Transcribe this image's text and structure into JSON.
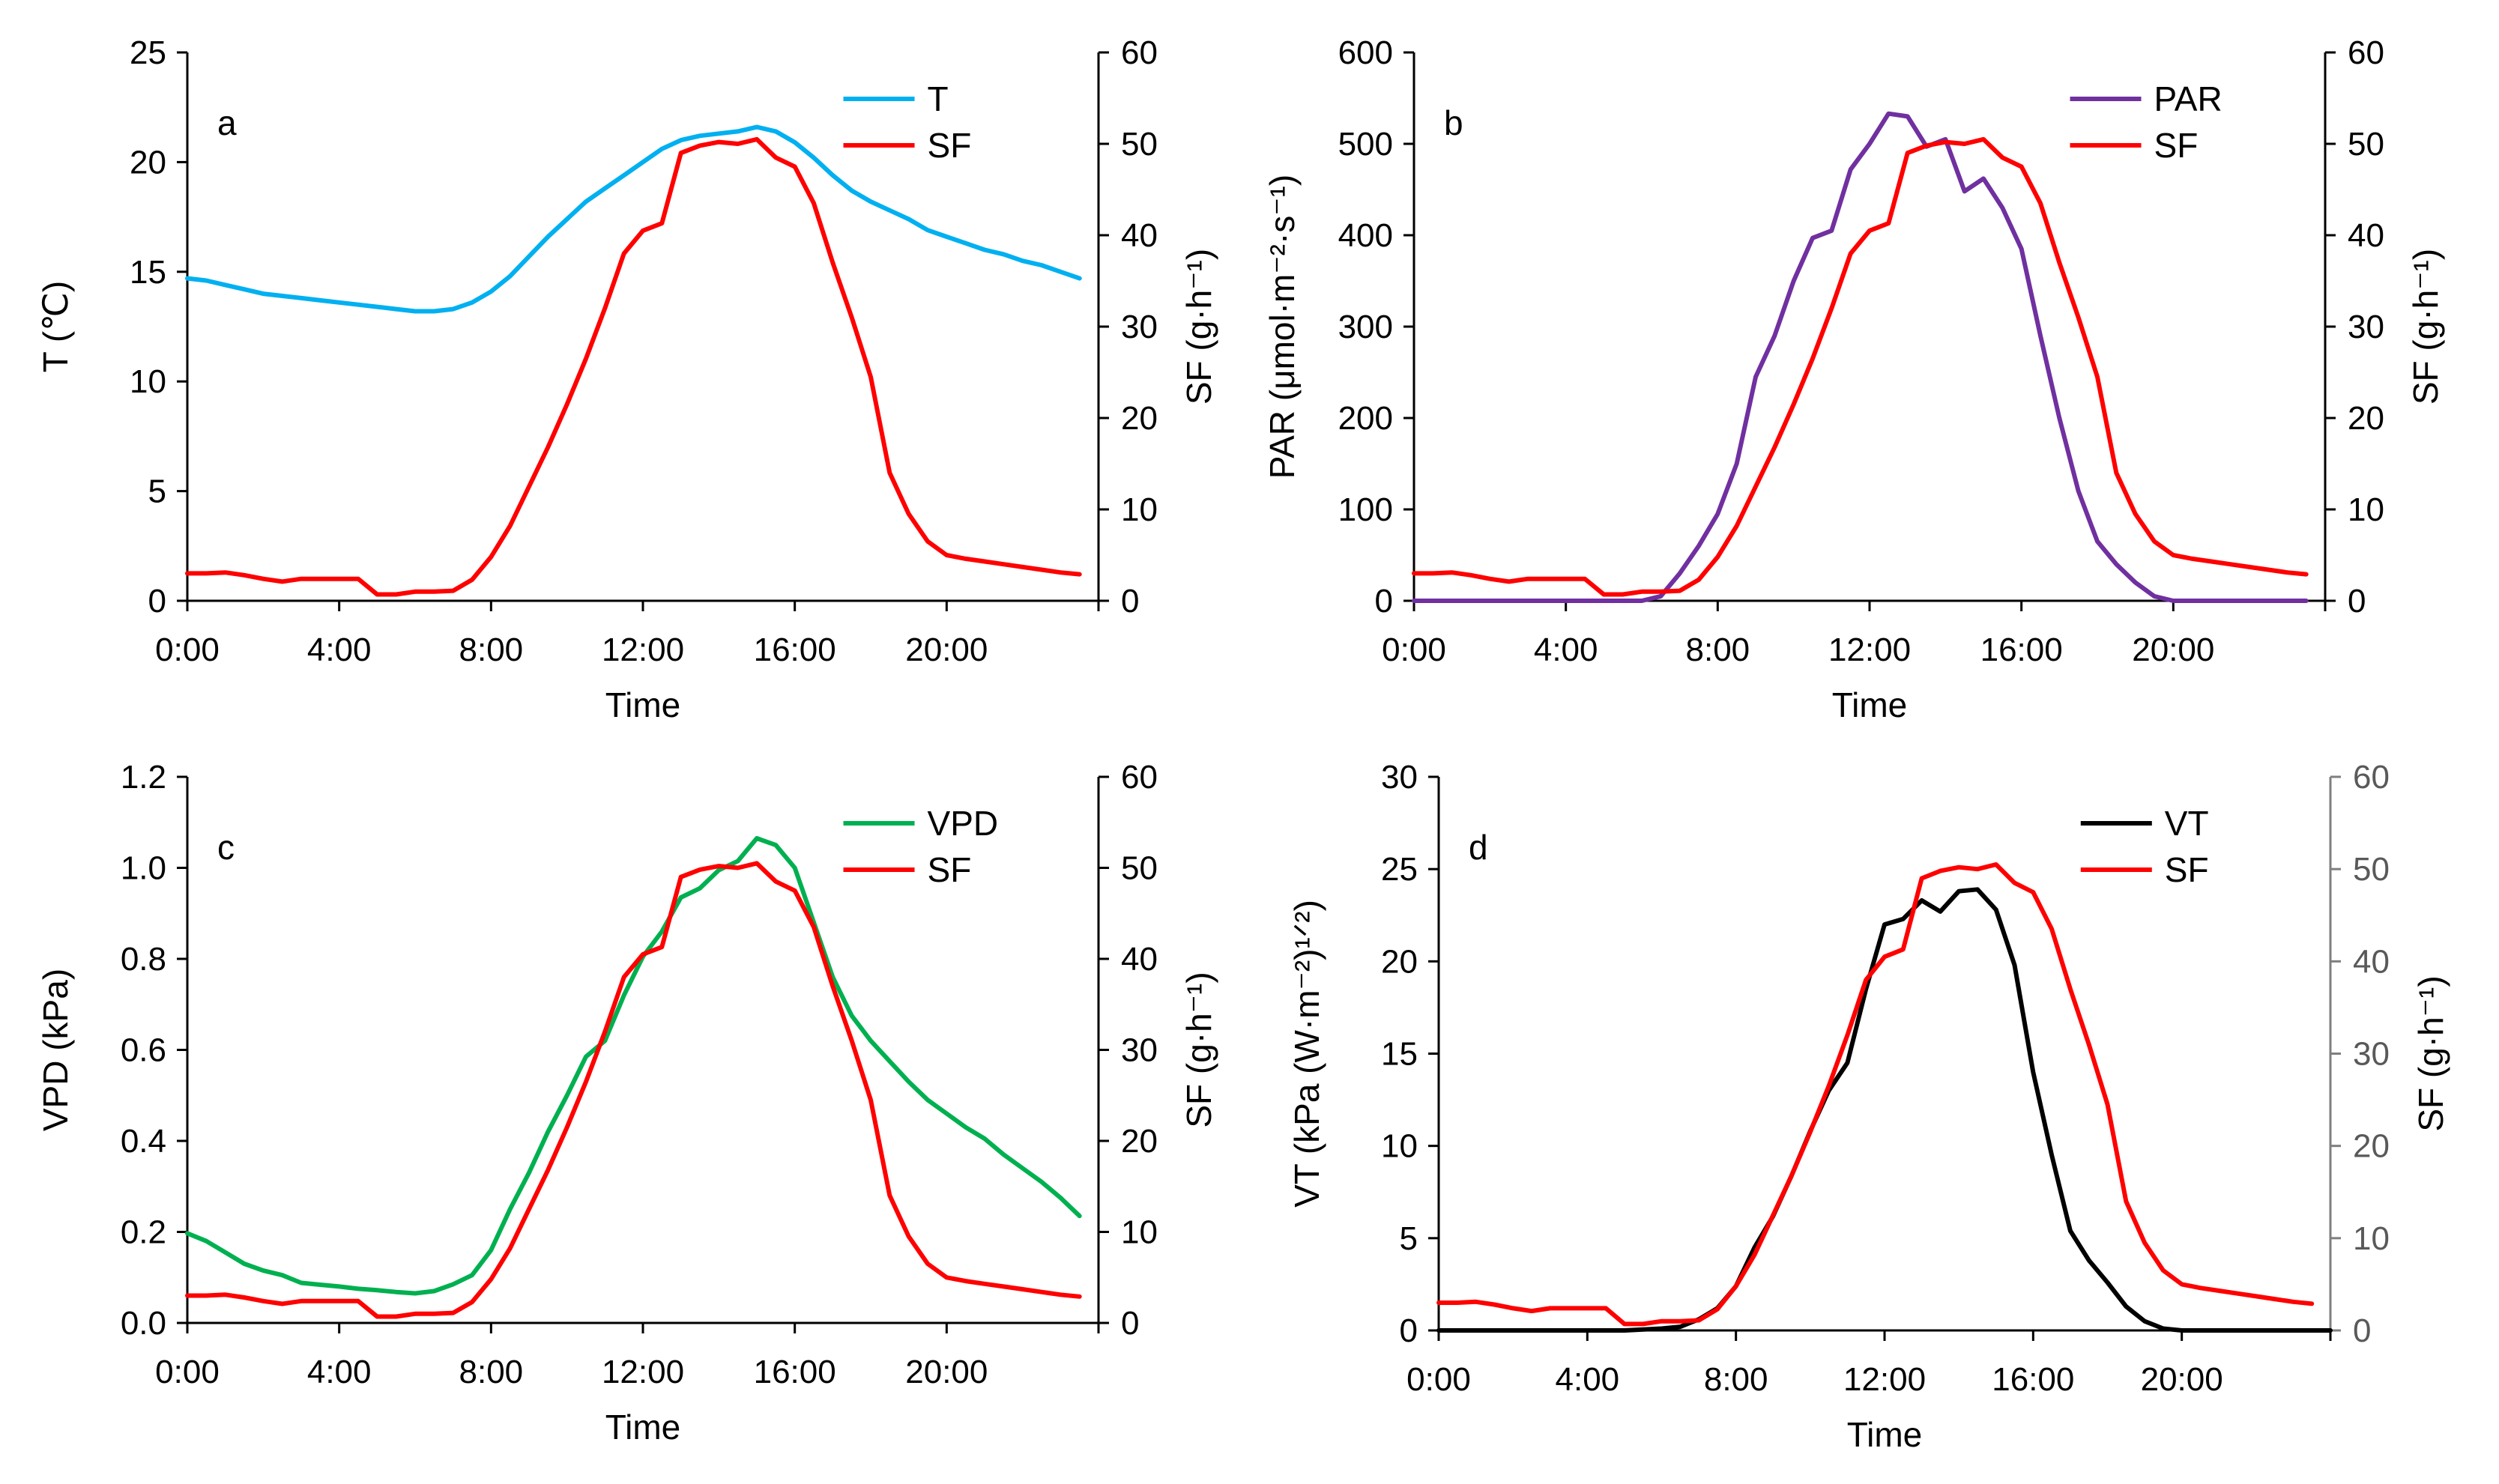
{
  "chart_data": [
    {
      "type": "line",
      "panel_label": "a",
      "x_unit": "hour",
      "xlim": [
        0,
        24
      ],
      "x_ticks": [
        0,
        4,
        8,
        12,
        16,
        20
      ],
      "x_tick_labels": [
        "0:00",
        "4:00",
        "8:00",
        "12:00",
        "16:00",
        "20:00"
      ],
      "xlabel": "Time",
      "ylabel_left": "T (℃)",
      "ylim_left": [
        0,
        25
      ],
      "y_ticks_left": [
        0,
        5,
        10,
        15,
        20,
        25
      ],
      "y_tick_labels_left": [
        "0",
        "5",
        "10",
        "15",
        "20",
        "25"
      ],
      "ylabel_right": "SF (g·h⁻¹)",
      "ylim_right": [
        0,
        60
      ],
      "y_ticks_right": [
        0,
        10,
        20,
        30,
        40,
        50,
        60
      ],
      "y_tick_labels_right": [
        "0",
        "10",
        "20",
        "30",
        "40",
        "50",
        "60"
      ],
      "right_tick_color": "#000000",
      "legend_position": "top-right",
      "series": [
        {
          "name": "T",
          "axis": "left",
          "color": "#00b0f0",
          "x": [
            0,
            0.5,
            1,
            1.5,
            2,
            2.5,
            3,
            3.5,
            4,
            4.5,
            5,
            5.5,
            6,
            6.5,
            7,
            7.5,
            8,
            8.5,
            9,
            9.5,
            10,
            10.5,
            11,
            11.5,
            12,
            12.5,
            13,
            13.5,
            14,
            14.5,
            15,
            15.5,
            16,
            16.5,
            17,
            17.5,
            18,
            18.5,
            19,
            19.5,
            20,
            20.5,
            21,
            21.5,
            22,
            22.5,
            23,
            23.5
          ],
          "values": [
            14.7,
            14.6,
            14.4,
            14.2,
            14.0,
            13.9,
            13.8,
            13.7,
            13.6,
            13.5,
            13.4,
            13.3,
            13.2,
            13.2,
            13.3,
            13.6,
            14.1,
            14.8,
            15.7,
            16.6,
            17.4,
            18.2,
            18.8,
            19.4,
            20.0,
            20.6,
            21.0,
            21.2,
            21.3,
            21.4,
            21.6,
            21.4,
            20.9,
            20.2,
            19.4,
            18.7,
            18.2,
            17.8,
            17.4,
            16.9,
            16.6,
            16.3,
            16.0,
            15.8,
            15.5,
            15.3,
            15.0,
            14.7
          ]
        },
        {
          "name": "SF",
          "axis": "right",
          "color": "#ff0000",
          "x": [
            0,
            0.5,
            1,
            1.5,
            2,
            2.5,
            3,
            3.5,
            4,
            4.5,
            5,
            5.5,
            6,
            6.5,
            7,
            7.5,
            8,
            8.5,
            9,
            9.5,
            10,
            10.5,
            11,
            11.5,
            12,
            12.5,
            13,
            13.5,
            14,
            14.5,
            15,
            15.5,
            16,
            16.5,
            17,
            17.5,
            18,
            18.5,
            19,
            19.5,
            20,
            20.5,
            21,
            21.5,
            22,
            22.5,
            23,
            23.5
          ],
          "values": [
            3.0,
            3.0,
            3.1,
            2.8,
            2.4,
            2.1,
            2.4,
            2.4,
            2.4,
            2.4,
            0.7,
            0.7,
            1.0,
            1.0,
            1.1,
            2.3,
            4.8,
            8.2,
            12.5,
            16.8,
            21.5,
            26.5,
            32.0,
            38.0,
            40.5,
            41.3,
            49.0,
            49.8,
            50.2,
            50.0,
            50.5,
            48.5,
            47.5,
            43.5,
            37.0,
            31.0,
            24.5,
            14.0,
            9.5,
            6.5,
            5.0,
            4.6,
            4.3,
            4.0,
            3.7,
            3.4,
            3.1,
            2.9
          ]
        }
      ]
    },
    {
      "type": "line",
      "panel_label": "b",
      "x_unit": "hour",
      "xlim": [
        0,
        24
      ],
      "x_ticks": [
        0,
        4,
        8,
        12,
        16,
        20
      ],
      "x_tick_labels": [
        "0:00",
        "4:00",
        "8:00",
        "12:00",
        "16:00",
        "20:00"
      ],
      "xlabel": "Time",
      "ylabel_left": "PAR (μmol·m⁻²·s⁻¹)",
      "ylim_left": [
        0,
        600
      ],
      "y_ticks_left": [
        0,
        100,
        200,
        300,
        400,
        500,
        600
      ],
      "y_tick_labels_left": [
        "0",
        "100",
        "200",
        "300",
        "400",
        "500",
        "600"
      ],
      "ylabel_right": "SF (g·h⁻¹)",
      "ylim_right": [
        0,
        60
      ],
      "y_ticks_right": [
        0,
        10,
        20,
        30,
        40,
        50,
        60
      ],
      "y_tick_labels_right": [
        "0",
        "10",
        "20",
        "30",
        "40",
        "50",
        "60"
      ],
      "right_tick_color": "#000000",
      "legend_position": "top-right",
      "series": [
        {
          "name": "PAR",
          "axis": "left",
          "color": "#7030a0",
          "x": [
            0,
            1,
            2,
            3,
            4,
            5,
            6,
            6.5,
            7,
            7.5,
            8,
            8.5,
            9,
            9.5,
            10,
            10.5,
            11,
            11.5,
            12,
            12.5,
            13,
            13.5,
            14,
            14.5,
            15,
            15.5,
            16,
            16.5,
            17,
            17.5,
            18,
            18.5,
            19,
            19.5,
            20,
            21,
            22,
            23,
            23.5
          ],
          "values": [
            0,
            0,
            0,
            0,
            0,
            0,
            0,
            5,
            30,
            60,
            95,
            150,
            245,
            290,
            350,
            397,
            405,
            472,
            500,
            533,
            530,
            497,
            505,
            448,
            462,
            430,
            385,
            290,
            200,
            120,
            65,
            40,
            20,
            5,
            0,
            0,
            0,
            0,
            0
          ]
        },
        {
          "name": "SF",
          "axis": "right",
          "color": "#ff0000",
          "x": [
            0,
            0.5,
            1,
            1.5,
            2,
            2.5,
            3,
            3.5,
            4,
            4.5,
            5,
            5.5,
            6,
            6.5,
            7,
            7.5,
            8,
            8.5,
            9,
            9.5,
            10,
            10.5,
            11,
            11.5,
            12,
            12.5,
            13,
            13.5,
            14,
            14.5,
            15,
            15.5,
            16,
            16.5,
            17,
            17.5,
            18,
            18.5,
            19,
            19.5,
            20,
            20.5,
            21,
            21.5,
            22,
            22.5,
            23,
            23.5
          ],
          "values": [
            3.0,
            3.0,
            3.1,
            2.8,
            2.4,
            2.1,
            2.4,
            2.4,
            2.4,
            2.4,
            0.7,
            0.7,
            1.0,
            1.0,
            1.1,
            2.3,
            4.8,
            8.2,
            12.5,
            16.8,
            21.5,
            26.5,
            32.0,
            38.0,
            40.5,
            41.3,
            49.0,
            49.8,
            50.2,
            50.0,
            50.5,
            48.5,
            47.5,
            43.5,
            37.0,
            31.0,
            24.5,
            14.0,
            9.5,
            6.5,
            5.0,
            4.6,
            4.3,
            4.0,
            3.7,
            3.4,
            3.1,
            2.9
          ]
        }
      ]
    },
    {
      "type": "line",
      "panel_label": "c",
      "x_unit": "hour",
      "xlim": [
        0,
        24
      ],
      "x_ticks": [
        0,
        4,
        8,
        12,
        16,
        20
      ],
      "x_tick_labels": [
        "0:00",
        "4:00",
        "8:00",
        "12:00",
        "16:00",
        "20:00"
      ],
      "xlabel": "Time",
      "ylabel_left": "VPD (kPa)",
      "ylim_left": [
        0,
        1.2
      ],
      "y_ticks_left": [
        0,
        0.2,
        0.4,
        0.6,
        0.8,
        1.0,
        1.2
      ],
      "y_tick_labels_left": [
        "0.0",
        "0.2",
        "0.4",
        "0.6",
        "0.8",
        "1.0",
        "1.2"
      ],
      "ylabel_right": "SF (g·h⁻¹)",
      "ylim_right": [
        0,
        60
      ],
      "y_ticks_right": [
        0,
        10,
        20,
        30,
        40,
        50,
        60
      ],
      "y_tick_labels_right": [
        "0",
        "10",
        "20",
        "30",
        "40",
        "50",
        "60"
      ],
      "right_tick_color": "#000000",
      "legend_position": "top-right",
      "series": [
        {
          "name": "VPD",
          "axis": "left",
          "color": "#00b050",
          "x": [
            0,
            0.5,
            1,
            1.5,
            2,
            2.5,
            3,
            3.5,
            4,
            4.5,
            5,
            5.5,
            6,
            6.5,
            7,
            7.5,
            8,
            8.5,
            9,
            9.5,
            10,
            10.5,
            11,
            11.5,
            12,
            12.5,
            13,
            13.5,
            14,
            14.5,
            15,
            15.5,
            16,
            16.5,
            17,
            17.5,
            18,
            18.5,
            19,
            19.5,
            20,
            20.5,
            21,
            21.5,
            22,
            22.5,
            23,
            23.5
          ],
          "values": [
            0.197,
            0.18,
            0.155,
            0.13,
            0.115,
            0.105,
            0.088,
            0.084,
            0.08,
            0.075,
            0.072,
            0.068,
            0.065,
            0.07,
            0.085,
            0.105,
            0.16,
            0.25,
            0.33,
            0.42,
            0.5,
            0.585,
            0.62,
            0.72,
            0.805,
            0.86,
            0.935,
            0.955,
            0.995,
            1.015,
            1.065,
            1.05,
            1.0,
            0.88,
            0.76,
            0.675,
            0.62,
            0.575,
            0.53,
            0.49,
            0.46,
            0.43,
            0.405,
            0.37,
            0.34,
            0.31,
            0.275,
            0.235
          ]
        },
        {
          "name": "SF",
          "axis": "right",
          "color": "#ff0000",
          "x": [
            0,
            0.5,
            1,
            1.5,
            2,
            2.5,
            3,
            3.5,
            4,
            4.5,
            5,
            5.5,
            6,
            6.5,
            7,
            7.5,
            8,
            8.5,
            9,
            9.5,
            10,
            10.5,
            11,
            11.5,
            12,
            12.5,
            13,
            13.5,
            14,
            14.5,
            15,
            15.5,
            16,
            16.5,
            17,
            17.5,
            18,
            18.5,
            19,
            19.5,
            20,
            20.5,
            21,
            21.5,
            22,
            22.5,
            23,
            23.5
          ],
          "values": [
            3.0,
            3.0,
            3.1,
            2.8,
            2.4,
            2.1,
            2.4,
            2.4,
            2.4,
            2.4,
            0.7,
            0.7,
            1.0,
            1.0,
            1.1,
            2.3,
            4.8,
            8.2,
            12.5,
            16.8,
            21.5,
            26.5,
            32.0,
            38.0,
            40.5,
            41.3,
            49.0,
            49.8,
            50.2,
            50.0,
            50.5,
            48.5,
            47.5,
            43.5,
            37.0,
            31.0,
            24.5,
            14.0,
            9.5,
            6.5,
            5.0,
            4.6,
            4.3,
            4.0,
            3.7,
            3.4,
            3.1,
            2.9
          ]
        }
      ]
    },
    {
      "type": "line",
      "panel_label": "d",
      "x_unit": "hour",
      "xlim": [
        0,
        24
      ],
      "x_ticks": [
        0,
        4,
        8,
        12,
        16,
        20
      ],
      "x_tick_labels": [
        "0:00",
        "4:00",
        "8:00",
        "12:00",
        "16:00",
        "20:00"
      ],
      "xlabel": "Time",
      "ylabel_left": "VT (kPa (W·m⁻²)¹ᐟ²)",
      "ylim_left": [
        0,
        30
      ],
      "y_ticks_left": [
        0,
        5,
        10,
        15,
        20,
        25,
        30
      ],
      "y_tick_labels_left": [
        "0",
        "5",
        "10",
        "15",
        "20",
        "25",
        "30"
      ],
      "ylabel_right": "SF (g·h⁻¹)",
      "ylim_right": [
        0,
        60
      ],
      "y_ticks_right": [
        0,
        10,
        20,
        30,
        40,
        50,
        60
      ],
      "y_tick_labels_right": [
        "0",
        "10",
        "20",
        "30",
        "40",
        "50",
        "60"
      ],
      "right_tick_color": "#7f7f7f",
      "legend_position": "top-right",
      "series": [
        {
          "name": "VT",
          "axis": "left",
          "color": "#000000",
          "x": [
            0,
            1,
            2,
            3,
            4,
            5,
            6,
            6.5,
            7,
            7.5,
            8,
            8.5,
            9,
            9.5,
            10,
            10.5,
            11,
            11.5,
            12,
            12.5,
            13,
            13.5,
            14,
            14.5,
            15,
            15.5,
            16,
            16.5,
            17,
            17.5,
            18,
            18.5,
            19,
            19.5,
            20,
            20.5,
            21,
            22,
            23,
            24
          ],
          "values": [
            0,
            0,
            0,
            0,
            0,
            0,
            0.1,
            0.2,
            0.6,
            1.2,
            2.4,
            4.5,
            6.2,
            8.4,
            10.8,
            13.0,
            14.5,
            18.5,
            22.0,
            22.3,
            23.3,
            22.7,
            23.8,
            23.9,
            22.8,
            19.8,
            14.0,
            9.5,
            5.4,
            3.8,
            2.6,
            1.3,
            0.5,
            0.1,
            0,
            0,
            0,
            0,
            0,
            0
          ]
        },
        {
          "name": "SF",
          "axis": "right",
          "color": "#ff0000",
          "x": [
            0,
            0.5,
            1,
            1.5,
            2,
            2.5,
            3,
            3.5,
            4,
            4.5,
            5,
            5.5,
            6,
            6.5,
            7,
            7.5,
            8,
            8.5,
            9,
            9.5,
            10,
            10.5,
            11,
            11.5,
            12,
            12.5,
            13,
            13.5,
            14,
            14.5,
            15,
            15.5,
            16,
            16.5,
            17,
            17.5,
            18,
            18.5,
            19,
            19.5,
            20,
            20.5,
            21,
            21.5,
            22,
            22.5,
            23,
            23.5
          ],
          "values": [
            3.0,
            3.0,
            3.1,
            2.8,
            2.4,
            2.1,
            2.4,
            2.4,
            2.4,
            2.4,
            0.7,
            0.7,
            1.0,
            1.0,
            1.1,
            2.3,
            4.8,
            8.2,
            12.5,
            16.8,
            21.5,
            26.5,
            32.0,
            38.0,
            40.5,
            41.3,
            49.0,
            49.8,
            50.2,
            50.0,
            50.5,
            48.5,
            47.5,
            43.5,
            37.0,
            31.0,
            24.5,
            14.0,
            9.5,
            6.5,
            5.0,
            4.6,
            4.3,
            4.0,
            3.7,
            3.4,
            3.1,
            2.9
          ]
        }
      ]
    }
  ]
}
